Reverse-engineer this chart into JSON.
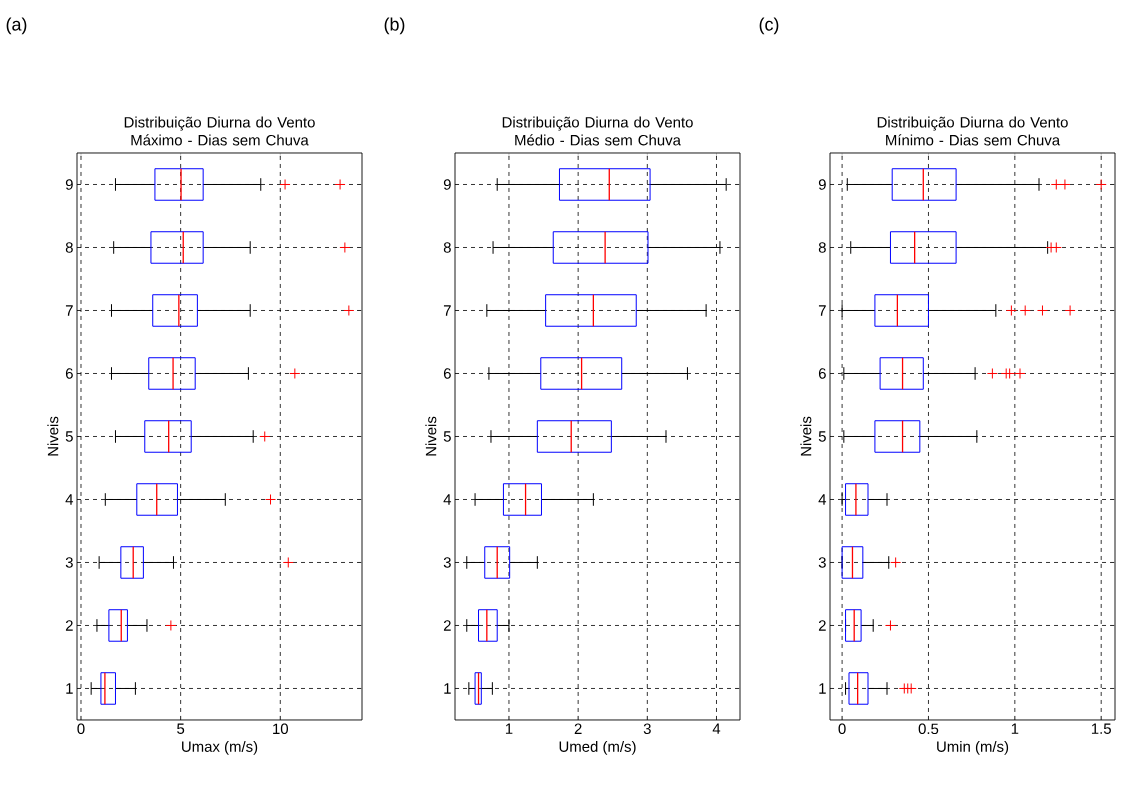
{
  "chart_data": [
    {
      "type": "box",
      "orientation": "horizontal",
      "title": "Distribuição Diurna do Vento Máximo - Dias sem Chuva",
      "xlabel": "Umax (m/s)",
      "ylabel": "Niveis",
      "annotations": [
        "(a)"
      ],
      "grid": true,
      "xlim": [
        -0.2,
        14.1
      ],
      "xticks": [
        0,
        5,
        10
      ],
      "categories": [
        "9",
        "8",
        "7",
        "6",
        "5",
        "4",
        "3",
        "2",
        "1"
      ],
      "boxes": [
        {
          "low": 1.73,
          "q1": 3.71,
          "median": 5.02,
          "q3": 6.13,
          "high": 9.02,
          "outliers": [
            10.24,
            13.0
          ]
        },
        {
          "low": 1.64,
          "q1": 3.51,
          "median": 5.13,
          "q3": 6.13,
          "high": 8.49,
          "outliers": [
            13.24
          ]
        },
        {
          "low": 1.53,
          "q1": 3.6,
          "median": 4.91,
          "q3": 5.84,
          "high": 8.49,
          "outliers": [
            13.44
          ]
        },
        {
          "low": 1.53,
          "q1": 3.4,
          "median": 4.62,
          "q3": 5.73,
          "high": 8.4,
          "outliers": [
            10.73
          ]
        },
        {
          "low": 1.73,
          "q1": 3.2,
          "median": 4.4,
          "q3": 5.53,
          "high": 8.64,
          "outliers": [
            9.22
          ]
        },
        {
          "low": 1.22,
          "q1": 2.8,
          "median": 3.8,
          "q3": 4.84,
          "high": 7.24,
          "outliers": [
            9.51
          ]
        },
        {
          "low": 0.91,
          "q1": 2.0,
          "median": 2.62,
          "q3": 3.13,
          "high": 4.64,
          "outliers": [
            10.4
          ]
        },
        {
          "low": 0.8,
          "q1": 1.4,
          "median": 2.02,
          "q3": 2.33,
          "high": 3.31,
          "outliers": [
            4.51
          ]
        },
        {
          "low": 0.51,
          "q1": 1.0,
          "median": 1.2,
          "q3": 1.73,
          "high": 2.73
        }
      ]
    },
    {
      "type": "box",
      "orientation": "horizontal",
      "title": "Distribuição Diurna do Vento Médio - Dias sem Chuva",
      "xlabel": "Umed (m/s)",
      "ylabel": "Niveis",
      "annotations": [
        "(b)"
      ],
      "grid": true,
      "xlim": [
        0.22,
        4.34
      ],
      "xticks": [
        1,
        2,
        3,
        4
      ],
      "categories": [
        "9",
        "8",
        "7",
        "6",
        "5",
        "4",
        "3",
        "2",
        "1"
      ],
      "boxes": [
        {
          "low": 0.83,
          "q1": 1.73,
          "median": 2.45,
          "q3": 3.04,
          "high": 4.14
        },
        {
          "low": 0.77,
          "q1": 1.64,
          "median": 2.39,
          "q3": 3.01,
          "high": 4.05
        },
        {
          "low": 0.68,
          "q1": 1.53,
          "median": 2.22,
          "q3": 2.84,
          "high": 3.85
        },
        {
          "low": 0.71,
          "q1": 1.46,
          "median": 2.05,
          "q3": 2.63,
          "high": 3.58
        },
        {
          "low": 0.74,
          "q1": 1.41,
          "median": 1.9,
          "q3": 2.48,
          "high": 3.27
        },
        {
          "low": 0.51,
          "q1": 0.92,
          "median": 1.24,
          "q3": 1.47,
          "high": 2.22
        },
        {
          "low": 0.39,
          "q1": 0.65,
          "median": 0.83,
          "q3": 1.01,
          "high": 1.41
        },
        {
          "low": 0.39,
          "q1": 0.56,
          "median": 0.68,
          "q3": 0.83,
          "high": 1.0
        },
        {
          "low": 0.42,
          "q1": 0.51,
          "median": 0.56,
          "q3": 0.6,
          "high": 0.76
        }
      ]
    },
    {
      "type": "box",
      "orientation": "horizontal",
      "title": "Distribuição Diurna do Vento Mínimo - Dias sem Chuva",
      "xlabel": "Umin (m/s)",
      "ylabel": "Niveis",
      "annotations": [
        "(c)"
      ],
      "grid": true,
      "xlim": [
        -0.07,
        1.58
      ],
      "xticks": [
        0,
        0.5,
        1,
        1.5
      ],
      "categories": [
        "9",
        "8",
        "7",
        "6",
        "5",
        "4",
        "3",
        "2",
        "1"
      ],
      "boxes": [
        {
          "low": 0.03,
          "q1": 0.29,
          "median": 0.47,
          "q3": 0.66,
          "high": 1.14,
          "outliers": [
            1.24,
            1.29,
            1.5
          ]
        },
        {
          "low": 0.05,
          "q1": 0.28,
          "median": 0.42,
          "q3": 0.66,
          "high": 1.19,
          "outliers": [
            1.21,
            1.24
          ]
        },
        {
          "low": 0.0,
          "q1": 0.19,
          "median": 0.32,
          "q3": 0.5,
          "high": 0.89,
          "outliers": [
            0.98,
            1.06,
            1.16,
            1.32
          ]
        },
        {
          "low": 0.01,
          "q1": 0.22,
          "median": 0.35,
          "q3": 0.47,
          "high": 0.77,
          "outliers": [
            0.87,
            0.95,
            0.97,
            1.03
          ]
        },
        {
          "low": 0.01,
          "q1": 0.19,
          "median": 0.35,
          "q3": 0.45,
          "high": 0.78
        },
        {
          "low": 0.0,
          "q1": 0.02,
          "median": 0.08,
          "q3": 0.15,
          "high": 0.26
        },
        {
          "low": 0.0,
          "q1": 0.0,
          "median": 0.06,
          "q3": 0.12,
          "high": 0.27,
          "outliers": [
            0.31
          ]
        },
        {
          "low": 0.02,
          "q1": 0.02,
          "median": 0.07,
          "q3": 0.11,
          "high": 0.18,
          "outliers": [
            0.28
          ]
        },
        {
          "low": 0.02,
          "q1": 0.04,
          "median": 0.09,
          "q3": 0.15,
          "high": 0.26,
          "outliers": [
            0.36,
            0.38,
            0.4
          ]
        }
      ]
    }
  ]
}
